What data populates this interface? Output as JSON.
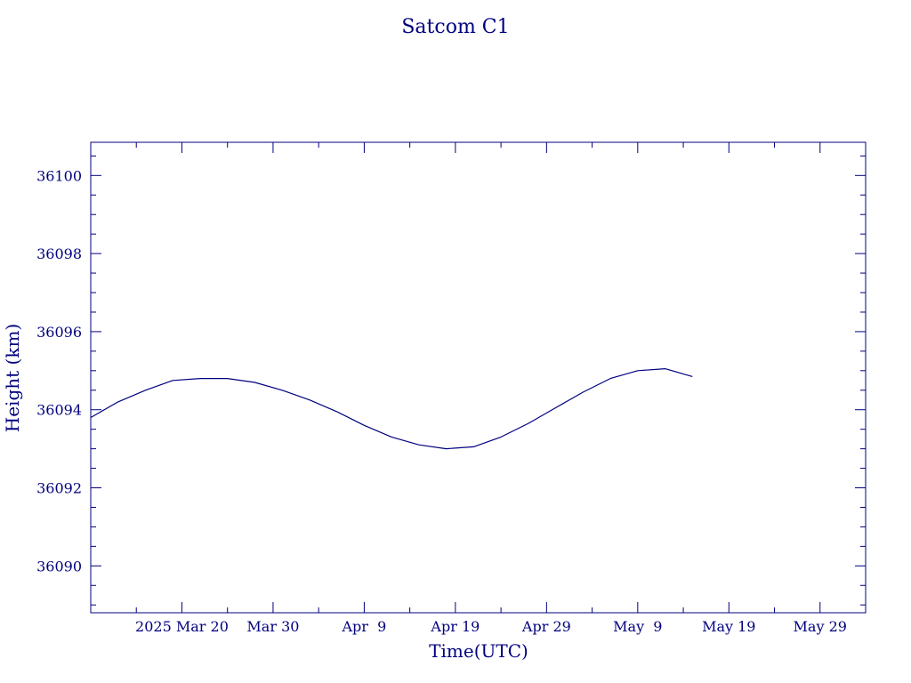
{
  "chart_data": {
    "type": "line",
    "title": "Satcom C1",
    "xlabel": "Time(UTC)",
    "ylabel": "Height (km)",
    "x_ticks": [
      {
        "date": "2025-03-20",
        "label": "2025 Mar 20"
      },
      {
        "date": "2025-03-30",
        "label": "Mar 30"
      },
      {
        "date": "2025-04-09",
        "label": "Apr  9"
      },
      {
        "date": "2025-04-19",
        "label": "Apr 19"
      },
      {
        "date": "2025-04-29",
        "label": "Apr 29"
      },
      {
        "date": "2025-05-09",
        "label": "May  9"
      },
      {
        "date": "2025-05-19",
        "label": "May 19"
      },
      {
        "date": "2025-05-29",
        "label": "May 29"
      }
    ],
    "xlim": [
      "2025-03-10",
      "2025-06-03"
    ],
    "y_ticks": [
      36090,
      36092,
      36094,
      36096,
      36098,
      36100
    ],
    "ylim": [
      36088.8,
      36100.85
    ],
    "grid": false,
    "line_color": "#00007f",
    "series": [
      {
        "x": [
          "2025-03-10",
          "2025-03-13",
          "2025-03-16",
          "2025-03-19",
          "2025-03-22",
          "2025-03-25",
          "2025-03-28",
          "2025-03-31",
          "2025-04-03",
          "2025-04-06",
          "2025-04-09",
          "2025-04-12",
          "2025-04-15",
          "2025-04-18",
          "2025-04-21",
          "2025-04-24",
          "2025-04-27",
          "2025-04-30",
          "2025-05-03",
          "2025-05-06",
          "2025-05-09",
          "2025-05-12",
          "2025-05-15"
        ],
        "y": [
          36093.8,
          36094.2,
          36094.5,
          36094.75,
          36094.8,
          36094.8,
          36094.7,
          36094.5,
          36094.25,
          36093.95,
          36093.6,
          36093.3,
          36093.1,
          36093.0,
          36093.05,
          36093.3,
          36093.65,
          36094.05,
          36094.45,
          36094.8,
          36095.0,
          36095.05,
          36094.85
        ]
      }
    ]
  }
}
